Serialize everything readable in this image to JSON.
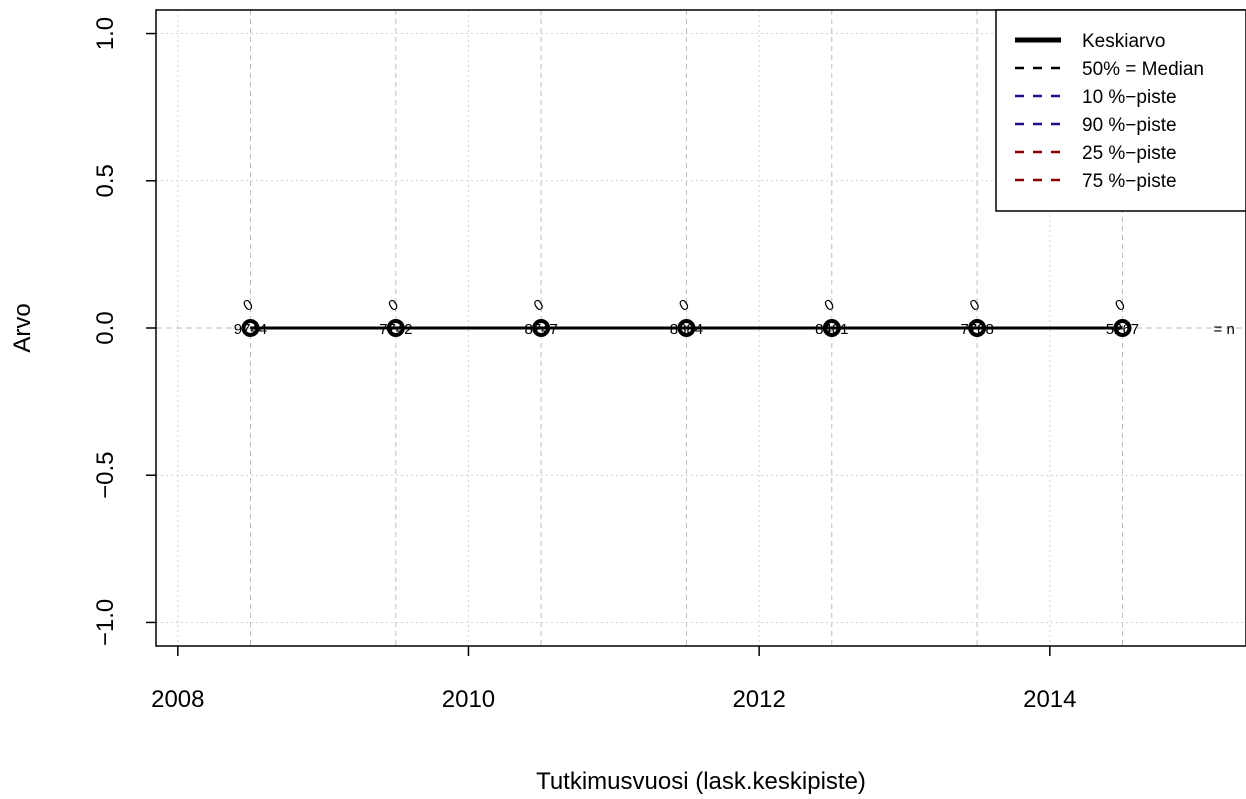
{
  "chart_data": {
    "type": "line",
    "xlabel": "Tutkimusvuosi (lask.keskipiste)",
    "ylabel": "Arvo",
    "xlim": [
      2007.85,
      2015.35
    ],
    "ylim": [
      -1.08,
      1.08
    ],
    "x_ticks": [
      2008,
      2010,
      2012,
      2014
    ],
    "y_ticks": [
      -1.0,
      -0.5,
      0.0,
      0.5,
      1.0
    ],
    "x_tick_labels": [
      "2008",
      "2010",
      "2012",
      "2014"
    ],
    "y_tick_labels": [
      "−1.0",
      "−0.5",
      "0.0",
      "0.5",
      "1.0"
    ],
    "x_grid": [
      2008,
      2008.5,
      2009.5,
      2010,
      2010.5,
      2011.5,
      2012,
      2012.5,
      2013.5,
      2014,
      2014.5
    ],
    "y_grid": [
      -1.0,
      -0.5,
      0.0,
      0.5,
      1.0
    ],
    "grid": true,
    "x": [
      2008.5,
      2009.5,
      2010.5,
      2011.5,
      2012.5,
      2013.5,
      2014.5
    ],
    "series": [
      {
        "name": "Keskiarvo",
        "values": [
          0,
          0,
          0,
          0,
          0,
          0,
          0
        ],
        "color": "#000000",
        "style": "solid-thick"
      },
      {
        "name": "50% = Median",
        "values": [
          0,
          0,
          0,
          0,
          0,
          0,
          0
        ],
        "color": "#000000",
        "style": "dashed"
      },
      {
        "name": "10 %−piste",
        "values": [
          0,
          0,
          0,
          0,
          0,
          0,
          0
        ],
        "color": "#1f0f8a",
        "style": "dashed"
      },
      {
        "name": "90 %−piste",
        "values": [
          0,
          0,
          0,
          0,
          0,
          0,
          0
        ],
        "color": "#1f0f8a",
        "style": "dashed"
      },
      {
        "name": "25 %−piste",
        "values": [
          0,
          0,
          0,
          0,
          0,
          0,
          0
        ],
        "color": "#8b0000",
        "style": "dashed"
      },
      {
        "name": "75 %−piste",
        "values": [
          0,
          0,
          0,
          0,
          0,
          0,
          0
        ],
        "color": "#8b0000",
        "style": "dashed"
      }
    ],
    "point_labels": [
      "0",
      "0",
      "0",
      "0",
      "0",
      "0",
      "0"
    ],
    "n_counts": [
      "9744",
      "7742",
      "8747",
      "8884",
      "8401",
      "7788",
      "5267"
    ],
    "n_label": "= n",
    "legend": {
      "position": "top-right",
      "entries": [
        "Keskiarvo",
        "50% = Median",
        "10 %−piste",
        "90 %−piste",
        "25 %−piste",
        "75 %−piste"
      ]
    }
  }
}
